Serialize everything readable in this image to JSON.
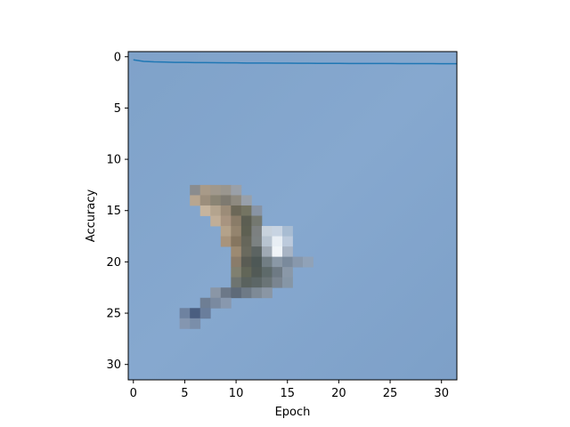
{
  "chart_data": {
    "type": "line",
    "title": "",
    "xlabel": "Epoch",
    "ylabel": "Accuracy",
    "xlim": [
      -0.5,
      31.5
    ],
    "ylim": [
      31.5,
      -0.5
    ],
    "y_axis_inverted": true,
    "grid": false,
    "x_ticks": [
      "0",
      "5",
      "10",
      "15",
      "20",
      "25",
      "30"
    ],
    "y_ticks": [
      "0",
      "5",
      "10",
      "15",
      "20",
      "25",
      "30"
    ],
    "background": "32x32 pixel image of a bird in flight against a blue sky",
    "series": [
      {
        "color": "#1f77b4",
        "x": [
          0,
          1,
          2,
          3,
          4,
          5,
          6,
          7,
          8,
          9,
          10,
          11,
          12,
          13,
          14,
          15,
          16,
          17,
          18,
          19,
          20,
          21,
          22,
          23,
          24,
          25,
          26,
          27,
          28,
          29,
          30,
          31,
          31.5
        ],
        "y": [
          0.3,
          0.45,
          0.5,
          0.52,
          0.55,
          0.55,
          0.57,
          0.57,
          0.58,
          0.6,
          0.6,
          0.62,
          0.62,
          0.62,
          0.63,
          0.63,
          0.64,
          0.64,
          0.65,
          0.65,
          0.65,
          0.66,
          0.66,
          0.66,
          0.66,
          0.66,
          0.67,
          0.67,
          0.67,
          0.67,
          0.68,
          0.68,
          0.68
        ]
      }
    ]
  }
}
